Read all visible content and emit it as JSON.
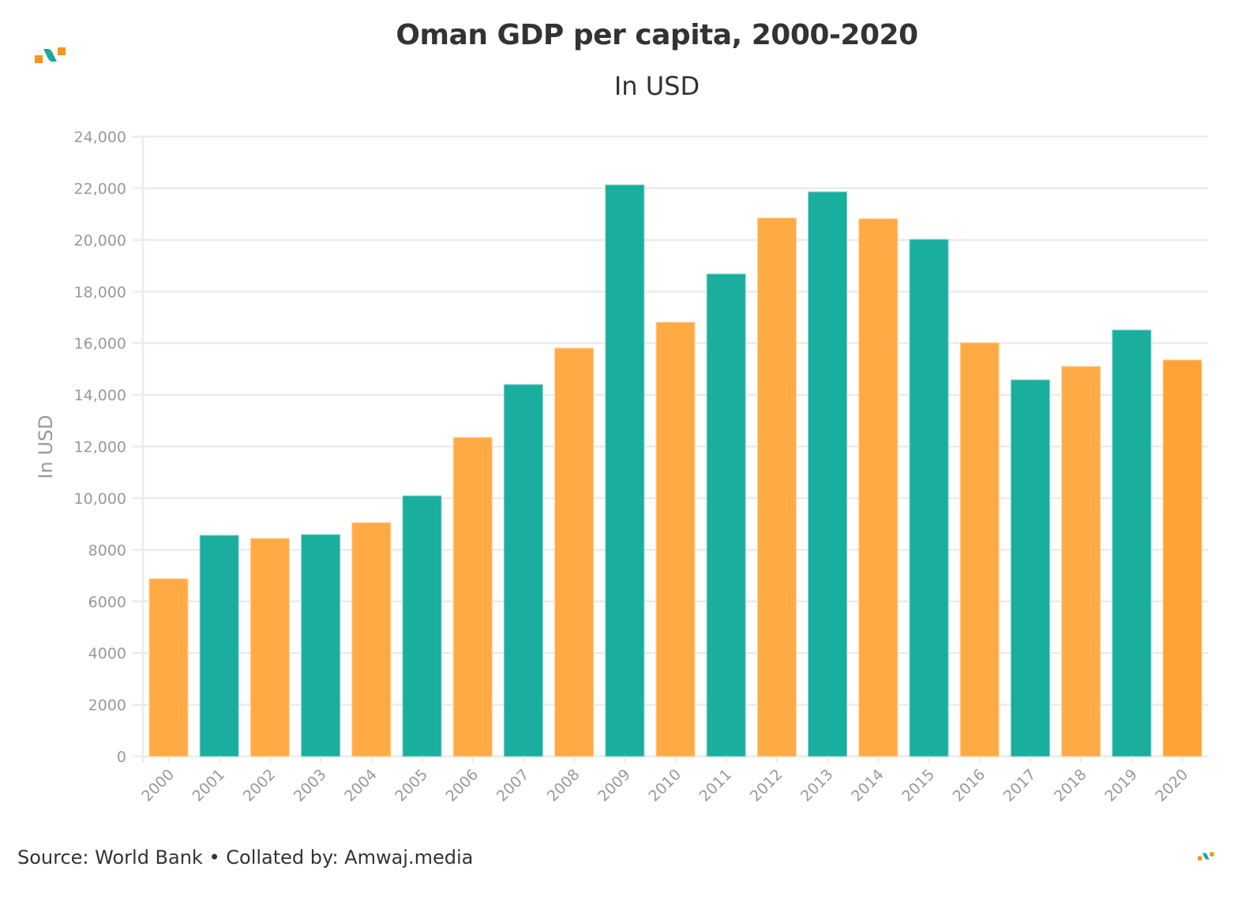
{
  "header": {
    "title": "Oman GDP per capita, 2000-2020",
    "subtitle": "In USD"
  },
  "footer": {
    "source": "Source: World Bank • Collated by: Amwaj.media"
  },
  "logo": {
    "name": "amwaj-logo",
    "colors": [
      "#f7941d",
      "#1aa99a"
    ]
  },
  "colors": {
    "teal": "#1aae9e",
    "orange": "#ffaa44",
    "orange_last": "#ffa336",
    "grid": "#ebebeb",
    "tick": "#999999"
  },
  "chart_data": {
    "type": "bar",
    "title": "Oman GDP per capita, 2000-2020",
    "subtitle": "In USD",
    "xlabel": "",
    "ylabel": "In USD",
    "ylim": [
      0,
      24000
    ],
    "grid": true,
    "yticks": [
      0,
      2000,
      4000,
      6000,
      8000,
      10000,
      12000,
      14000,
      16000,
      18000,
      20000,
      22000,
      24000
    ],
    "ytick_labels": [
      "0",
      "2000",
      "4000",
      "6000",
      "8000",
      "10,000",
      "12,000",
      "14,000",
      "16,000",
      "18,000",
      "20,000",
      "22,000",
      "24,000"
    ],
    "categories": [
      "2000",
      "2001",
      "2002",
      "2003",
      "2004",
      "2005",
      "2006",
      "2007",
      "2008",
      "2009",
      "2010",
      "2011",
      "2012",
      "2013",
      "2014",
      "2015",
      "2016",
      "2017",
      "2018",
      "2019",
      "2020"
    ],
    "values": [
      6880,
      8560,
      8440,
      8590,
      9050,
      10090,
      12350,
      14400,
      15810,
      22130,
      16810,
      18680,
      20850,
      21860,
      20820,
      20020,
      16020,
      14580,
      15100,
      16510,
      15350
    ],
    "bar_colors": [
      "orange",
      "teal",
      "orange",
      "teal",
      "orange",
      "teal",
      "orange",
      "teal",
      "orange",
      "teal",
      "orange",
      "teal",
      "orange",
      "teal",
      "orange",
      "teal",
      "orange",
      "teal",
      "orange",
      "teal",
      "orange_last"
    ],
    "legend": "none"
  }
}
